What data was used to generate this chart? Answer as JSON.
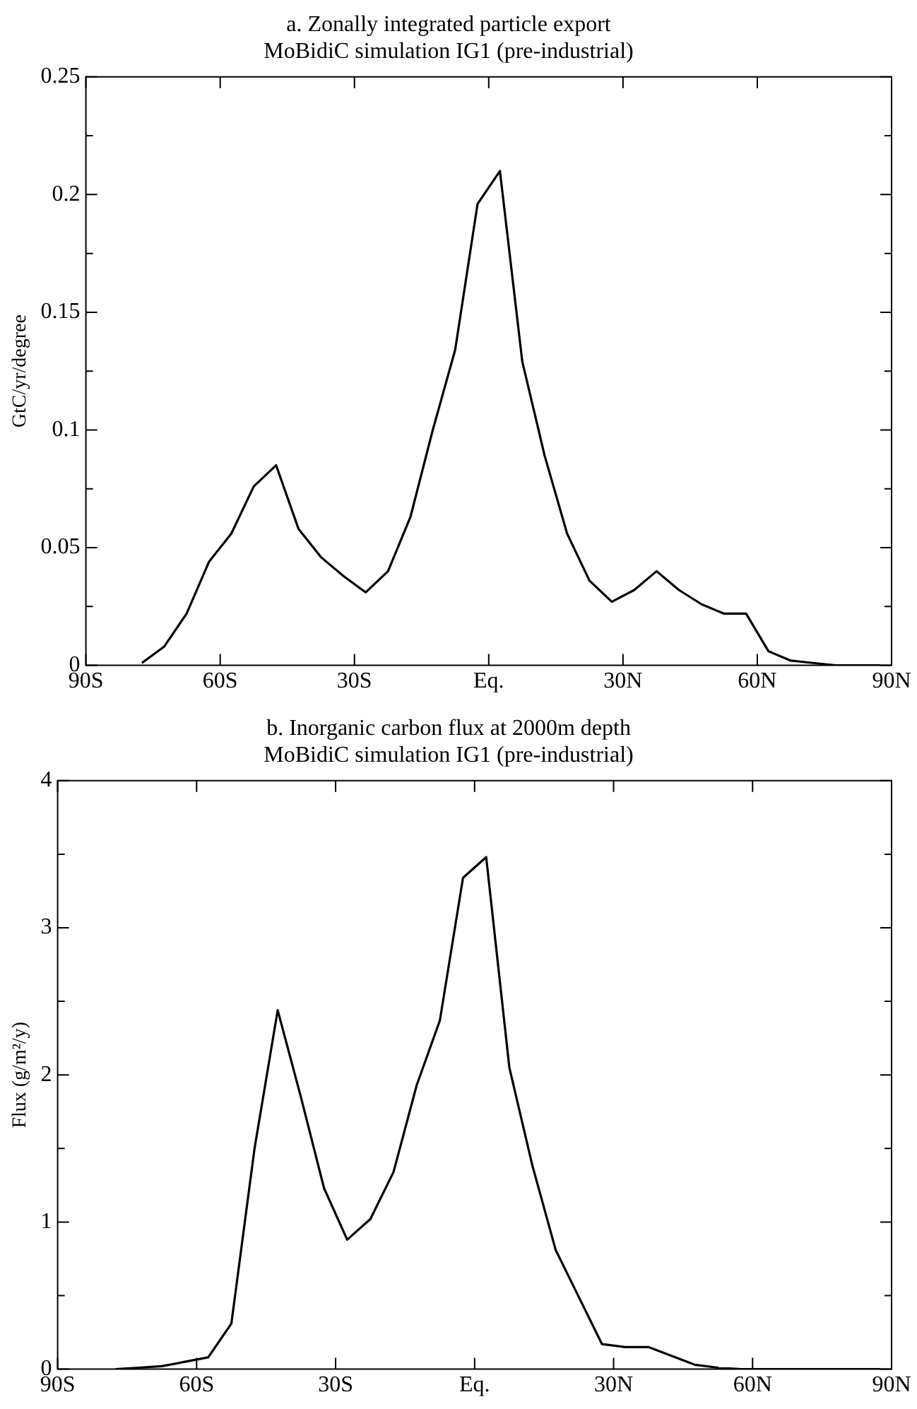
{
  "chart_data": [
    {
      "type": "line",
      "title": "a. Zonally integrated particle export",
      "subtitle": "MoBidiC simulation IG1 (pre-industrial)",
      "ylabel": "GtC/yr/degree",
      "x": [
        -77.5,
        -72.5,
        -67.5,
        -62.5,
        -57.5,
        -52.5,
        -47.5,
        -42.5,
        -37.5,
        -32.5,
        -27.5,
        -22.5,
        -17.5,
        -12.5,
        -7.5,
        -2.5,
        2.5,
        7.5,
        12.5,
        17.5,
        22.5,
        27.5,
        32.5,
        37.5,
        42.5,
        47.5,
        52.5,
        57.5,
        62.5,
        67.5,
        72.5,
        77.5,
        82.5,
        87.5
      ],
      "series": [
        {
          "color": "#000000",
          "values": [
            0.001,
            0.008,
            0.022,
            0.044,
            0.056,
            0.076,
            0.085,
            0.058,
            0.046,
            0.038,
            0.031,
            0.04,
            0.063,
            0.1,
            0.134,
            0.196,
            0.21,
            0.129,
            0.089,
            0.056,
            0.036,
            0.027,
            0.032,
            0.04,
            0.032,
            0.026,
            0.022,
            0.022,
            0.006,
            0.002,
            0.001,
            0,
            0,
            0
          ]
        }
      ],
      "xlim": [
        -90,
        90
      ],
      "xticks": [
        {
          "value": -90,
          "label": "90S"
        },
        {
          "value": -60,
          "label": "60S"
        },
        {
          "value": -30,
          "label": "30S"
        },
        {
          "value": 0,
          "label": "Eq."
        },
        {
          "value": 30,
          "label": "30N"
        },
        {
          "value": 60,
          "label": "60N"
        },
        {
          "value": 90,
          "label": "90N"
        }
      ],
      "ylim": [
        0,
        0.25
      ],
      "yticks": [
        0,
        {
          "value": 0.025,
          "label": null
        },
        0.05,
        {
          "value": 0.075,
          "label": null
        },
        0.1,
        {
          "value": 0.125,
          "label": null
        },
        0.15,
        {
          "value": 0.175,
          "label": null
        },
        0.2,
        {
          "value": 0.225,
          "label": null
        },
        0.25
      ],
      "grid": false,
      "legend": false,
      "marker": "none",
      "line_style": "solid"
    },
    {
      "type": "line",
      "title": "b. Inorganic carbon flux at 2000m depth",
      "subtitle": "MoBidiC simulation IG1 (pre-industrial)",
      "ylabel": "Flux (g/m²/y)",
      "x": [
        -77.5,
        -72.5,
        -67.5,
        -62.5,
        -57.5,
        -52.5,
        -47.5,
        -42.5,
        -37.5,
        -32.5,
        -27.5,
        -22.5,
        -17.5,
        -12.5,
        -7.5,
        -2.5,
        2.5,
        7.5,
        12.5,
        17.5,
        22.5,
        27.5,
        32.5,
        37.5,
        42.5,
        47.5,
        52.5,
        57.5,
        62.5,
        67.5,
        72.5,
        77.5,
        82.5,
        87.5
      ],
      "series": [
        {
          "color": "#000000",
          "values": [
            0,
            0.01,
            0.02,
            0.05,
            0.08,
            0.31,
            1.5,
            2.44,
            1.85,
            1.23,
            0.88,
            1.02,
            1.34,
            1.93,
            2.37,
            3.34,
            3.48,
            2.05,
            1.38,
            0.81,
            0.49,
            0.17,
            0.15,
            0.15,
            0.09,
            0.03,
            0.01,
            0,
            0,
            0,
            0,
            0,
            0,
            0
          ]
        }
      ],
      "xlim": [
        -90,
        90
      ],
      "xticks": [
        {
          "value": -90,
          "label": "90S"
        },
        {
          "value": -60,
          "label": "60S"
        },
        {
          "value": -30,
          "label": "30S"
        },
        {
          "value": 0,
          "label": "Eq."
        },
        {
          "value": 30,
          "label": "30N"
        },
        {
          "value": 60,
          "label": "60N"
        },
        {
          "value": 90,
          "label": "90N"
        }
      ],
      "ylim": [
        0,
        4
      ],
      "yticks": [
        0,
        {
          "value": 0.5,
          "label": null
        },
        1,
        {
          "value": 1.5,
          "label": null
        },
        2,
        {
          "value": 2.5,
          "label": null
        },
        3,
        {
          "value": 3.5,
          "label": null
        },
        4
      ],
      "grid": false,
      "legend": false,
      "marker": "none",
      "line_style": "solid"
    }
  ]
}
